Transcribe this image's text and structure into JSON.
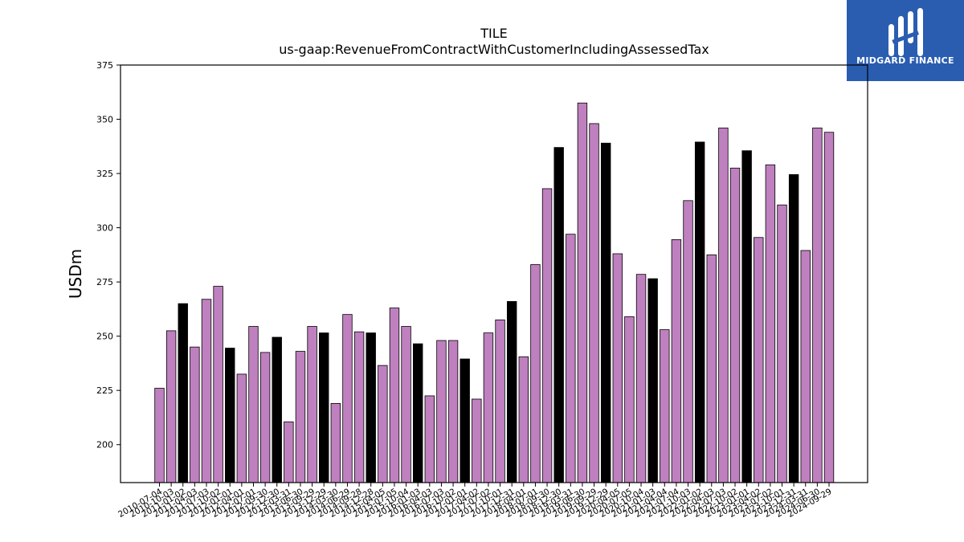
{
  "chart_data": {
    "type": "bar",
    "title": "TILE",
    "subtitle": "us-gaap:RevenueFromContractWithCustomerIncludingAssessedTax",
    "ylabel": "USDm",
    "xlabel": "",
    "ylim": [
      182.5,
      375
    ],
    "yticks": [
      200,
      225,
      250,
      275,
      300,
      325,
      350,
      375
    ],
    "grid": false,
    "colors": {
      "default": "#bf80bf",
      "highlight": "#000000"
    },
    "categories": [
      "2010-07-04",
      "2010-10-03",
      "2011-01-02",
      "2011-04-03",
      "2011-07-03",
      "2011-10-02",
      "2012-01-01",
      "2012-04-01",
      "2012-07-01",
      "2012-09-30",
      "2012-12-30",
      "2013-03-31",
      "2013-06-30",
      "2013-09-29",
      "2013-12-29",
      "2014-03-30",
      "2014-06-29",
      "2014-09-28",
      "2014-12-28",
      "2015-04-05",
      "2015-07-05",
      "2015-10-04",
      "2016-01-03",
      "2016-04-03",
      "2016-07-03",
      "2016-10-02",
      "2017-01-01",
      "2017-04-02",
      "2017-07-02",
      "2017-10-01",
      "2017-12-31",
      "2018-04-01",
      "2018-07-01",
      "2018-09-30",
      "2018-12-30",
      "2019-03-31",
      "2019-06-30",
      "2019-09-29",
      "2019-12-29",
      "2020-04-05",
      "2020-07-05",
      "2020-10-04",
      "2021-01-03",
      "2021-04-04",
      "2021-07-04",
      "2021-10-03",
      "2022-01-02",
      "2022-04-03",
      "2022-07-03",
      "2022-10-02",
      "2023-01-01",
      "2023-04-02",
      "2023-07-02",
      "2023-10-01",
      "2023-12-31",
      "2024-03-31",
      "2024-06-30",
      "2024-09-29"
    ],
    "values": [
      226,
      252.5,
      265,
      245,
      267,
      273,
      244.5,
      232.5,
      254.5,
      242.5,
      249.5,
      210.5,
      243,
      254.5,
      251.5,
      219,
      260,
      252,
      251.5,
      236.5,
      263,
      254.5,
      246.5,
      222.5,
      248,
      248,
      239.5,
      221,
      251.5,
      257.5,
      266,
      240.5,
      283,
      318,
      337,
      297,
      357.5,
      348,
      339,
      288,
      259,
      278.5,
      276.5,
      253,
      294.5,
      312.5,
      339.5,
      287.5,
      346,
      327.5,
      335.5,
      295.5,
      329,
      310.5,
      324.5,
      289.5,
      346,
      344
    ],
    "highlight": [
      false,
      false,
      true,
      false,
      false,
      false,
      true,
      false,
      false,
      false,
      true,
      false,
      false,
      false,
      true,
      false,
      false,
      false,
      true,
      false,
      false,
      false,
      true,
      false,
      false,
      false,
      true,
      false,
      false,
      false,
      true,
      false,
      false,
      false,
      true,
      false,
      false,
      false,
      true,
      false,
      false,
      false,
      true,
      false,
      false,
      false,
      true,
      false,
      false,
      false,
      true,
      false,
      false,
      false,
      true,
      false,
      false,
      false
    ]
  },
  "logo": {
    "text": "MIDGARD FINANCE"
  }
}
